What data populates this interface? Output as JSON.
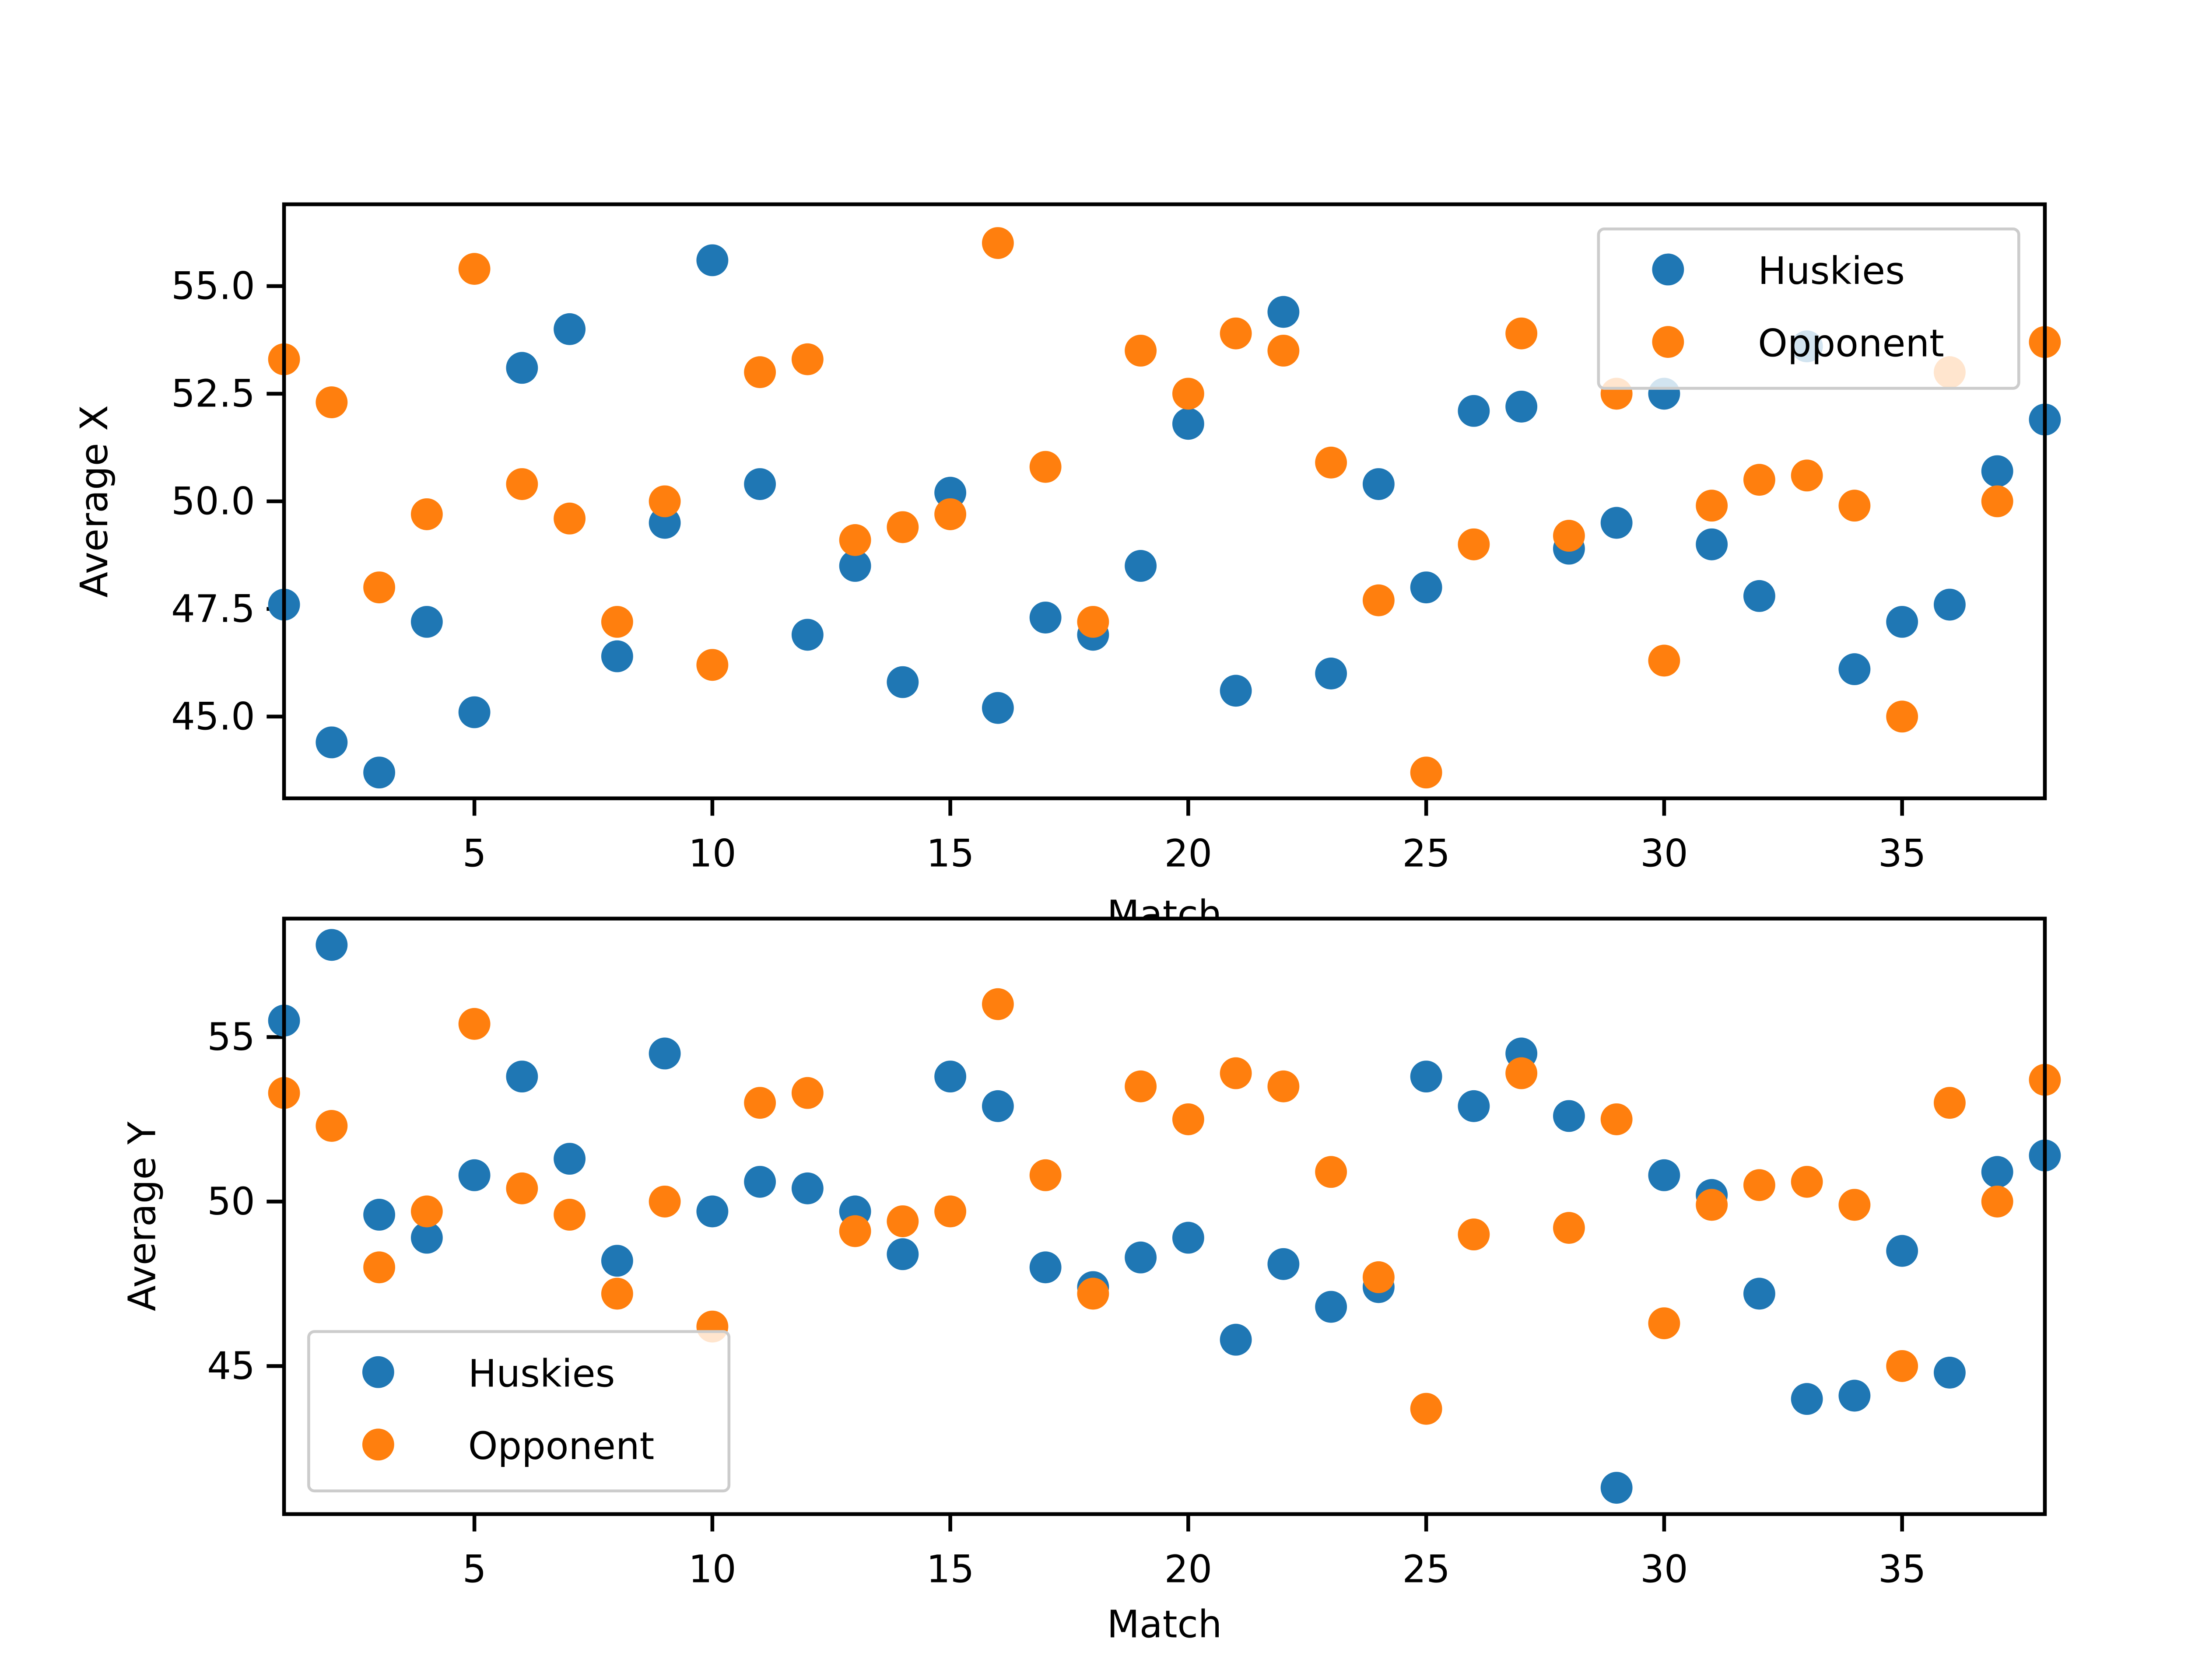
{
  "chart_data": [
    {
      "type": "scatter",
      "xlabel": "Match",
      "ylabel": "Average X",
      "xlim": [
        1,
        38
      ],
      "ylim": [
        43.1,
        56.9
      ],
      "xticks": [
        5,
        10,
        15,
        20,
        25,
        30,
        35
      ],
      "yticks": [
        45.0,
        47.5,
        50.0,
        52.5,
        55.0
      ],
      "ytick_decimals": 1,
      "legend": "top-right",
      "grid": false,
      "x": [
        1,
        2,
        3,
        4,
        5,
        6,
        7,
        8,
        9,
        10,
        11,
        12,
        13,
        14,
        15,
        16,
        17,
        18,
        19,
        20,
        21,
        22,
        23,
        24,
        25,
        26,
        27,
        28,
        29,
        30,
        31,
        32,
        33,
        34,
        35,
        36,
        37,
        38
      ],
      "series": [
        {
          "name": "Huskies",
          "color": "#1f77b4",
          "values": [
            47.6,
            44.4,
            43.7,
            47.2,
            45.1,
            53.1,
            54.0,
            46.4,
            49.5,
            55.6,
            50.4,
            46.9,
            48.5,
            45.8,
            50.2,
            45.2,
            47.3,
            46.9,
            48.5,
            51.8,
            45.6,
            54.4,
            46.0,
            50.4,
            48.0,
            52.1,
            52.2,
            48.9,
            49.5,
            52.5,
            49.0,
            47.8,
            53.6,
            46.1,
            47.2,
            47.6,
            50.7,
            51.9
          ]
        },
        {
          "name": "Opponent",
          "color": "#ff7f0e",
          "values": [
            53.3,
            52.3,
            48.0,
            49.7,
            55.4,
            50.4,
            49.6,
            47.2,
            50.0,
            46.2,
            53.0,
            53.3,
            49.1,
            49.4,
            49.7,
            56.0,
            50.8,
            47.2,
            53.5,
            52.5,
            53.9,
            53.5,
            50.9,
            47.7,
            43.7,
            49.0,
            53.9,
            49.2,
            52.5,
            46.3,
            49.9,
            50.5,
            50.6,
            49.9,
            45.0,
            53.0,
            50.0,
            53.7
          ]
        }
      ]
    },
    {
      "type": "scatter",
      "xlabel": "Match",
      "ylabel": "Average Y",
      "xlim": [
        1,
        38
      ],
      "ylim": [
        40.5,
        58.6
      ],
      "xticks": [
        5,
        10,
        15,
        20,
        25,
        30,
        35
      ],
      "yticks": [
        45,
        50,
        55
      ],
      "ytick_decimals": 0,
      "legend": "bottom-left",
      "grid": false,
      "x": [
        1,
        2,
        3,
        4,
        5,
        6,
        7,
        8,
        9,
        10,
        11,
        12,
        13,
        14,
        15,
        16,
        17,
        18,
        19,
        20,
        21,
        22,
        23,
        24,
        25,
        26,
        27,
        28,
        29,
        30,
        31,
        32,
        33,
        34,
        35,
        36,
        37,
        38
      ],
      "series": [
        {
          "name": "Huskies",
          "color": "#1f77b4",
          "values": [
            55.5,
            57.8,
            49.6,
            48.9,
            50.8,
            53.8,
            51.3,
            48.2,
            54.5,
            49.7,
            50.6,
            50.4,
            49.7,
            48.4,
            53.8,
            52.9,
            48.0,
            47.4,
            48.3,
            48.9,
            45.8,
            48.1,
            46.8,
            47.4,
            53.8,
            52.9,
            54.5,
            52.6,
            41.3,
            50.8,
            50.2,
            47.2,
            44.0,
            44.1,
            48.5,
            44.8,
            50.9,
            51.4
          ]
        },
        {
          "name": "Opponent",
          "color": "#ff7f0e",
          "values": [
            53.3,
            52.3,
            48.0,
            49.7,
            55.4,
            50.4,
            49.6,
            47.2,
            50.0,
            46.2,
            53.0,
            53.3,
            49.1,
            49.4,
            49.7,
            56.0,
            50.8,
            47.2,
            53.5,
            52.5,
            53.9,
            53.5,
            50.9,
            47.7,
            43.7,
            49.0,
            53.9,
            49.2,
            52.5,
            46.3,
            49.9,
            50.5,
            50.6,
            49.9,
            45.0,
            53.0,
            50.0,
            53.7
          ]
        }
      ]
    }
  ]
}
